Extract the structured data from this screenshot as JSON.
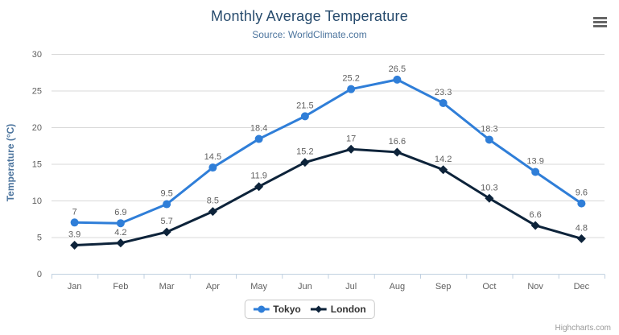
{
  "chart": {
    "title": "Monthly Average Temperature",
    "subtitle": "Source: WorldClimate.com",
    "y_axis_title": "Temperature (°C)",
    "credits": "Highcharts.com",
    "menu_icon": "hamburger-icon"
  },
  "theme": {
    "title_color": "#274b6d",
    "subtitle_color": "#4d759e",
    "axis_label_color": "#606060",
    "grid_color": "#d8d8d8",
    "axis_line_color": "#c0d0e0",
    "data_label_color": "#606060",
    "legend_text_color": "#333333",
    "credits_color": "#999999"
  },
  "chart_data": {
    "type": "line",
    "title": "Monthly Average Temperature",
    "subtitle": "Source: WorldClimate.com",
    "xlabel": "",
    "ylabel": "Temperature (°C)",
    "ylim": [
      0,
      30
    ],
    "y_tick_step": 5,
    "grid": true,
    "legend_position": "bottom",
    "categories": [
      "Jan",
      "Feb",
      "Mar",
      "Apr",
      "May",
      "Jun",
      "Jul",
      "Aug",
      "Sep",
      "Oct",
      "Nov",
      "Dec"
    ],
    "series": [
      {
        "name": "Tokyo",
        "color": "#2f7ed8",
        "marker": "circle",
        "values": [
          7,
          6.9,
          9.5,
          14.5,
          18.4,
          21.5,
          25.2,
          26.5,
          23.3,
          18.3,
          13.9,
          9.6
        ]
      },
      {
        "name": "London",
        "color": "#0d233a",
        "marker": "diamond",
        "values": [
          3.9,
          4.2,
          5.7,
          8.5,
          11.9,
          15.2,
          17,
          16.6,
          14.2,
          10.3,
          6.6,
          4.8
        ]
      }
    ]
  }
}
